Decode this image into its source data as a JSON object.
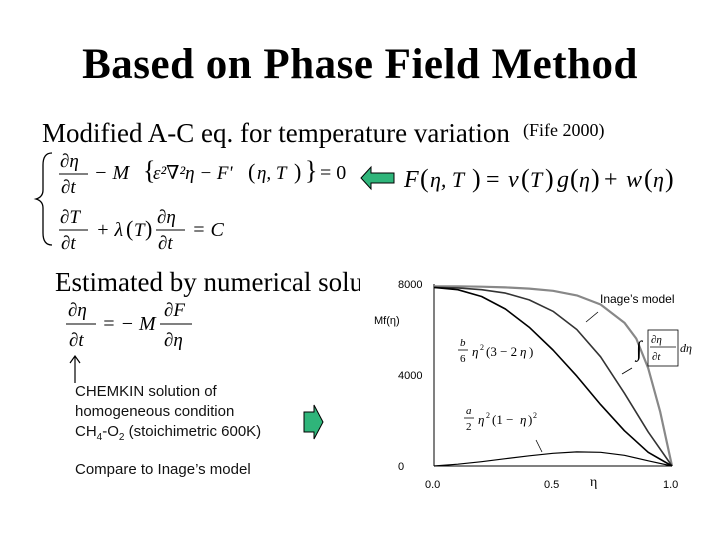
{
  "slide": {
    "title": "Based on Phase Field Method",
    "line1": "Modified A-C eq. for temperature variation",
    "citation": "(Fife 2000)",
    "line2": "Estimated by numerical soluti"
  },
  "equations": {
    "eq1": "∂η/∂t − M{ε²∇²η − F'(η,T)} = 0",
    "eq2": "∂T/∂t + λ(T) ∂η/∂t = C",
    "free_energy": "F(η,T) = v(T)g(η) + w(η)",
    "rate": "∂η/∂t = −M ∂F/∂η"
  },
  "notes": {
    "chemkin_line1": "CHEMKIN solution of",
    "chemkin_line2": "homogeneous condition",
    "chemkin_species_a": "CH",
    "chemkin_sub_a": "4",
    "chemkin_mid": "-O",
    "chemkin_sub_b": "2",
    "chemkin_tail": " (stoichimetric 600K)",
    "compare": "Compare to Inage’s model"
  },
  "chart_data": {
    "type": "line",
    "ylabel": "Mf(η)",
    "xlabel": "η",
    "x_ticks": [
      "0.0",
      "0.5",
      "1.0"
    ],
    "y_ticks": [
      "8000",
      "4000",
      "0"
    ],
    "xlim": [
      0,
      1
    ],
    "ylim": [
      0,
      8000
    ],
    "legend": "Inage’s model",
    "annotations": {
      "cubic": "(b/6) η² (3 − 2η)",
      "quartic": "(a/2) η² (1 − η)²",
      "integral": "∫ (∂η/∂t) dη"
    },
    "series": [
      {
        "name": "Inage’s model",
        "color": "#888888",
        "x": [
          0,
          0.1,
          0.2,
          0.3,
          0.4,
          0.5,
          0.6,
          0.7,
          0.8,
          0.85,
          0.9,
          0.95,
          1.0
        ],
        "y": [
          7900,
          7900,
          7880,
          7850,
          7800,
          7700,
          7500,
          7100,
          6300,
          5600,
          4300,
          2400,
          0
        ]
      },
      {
        "name": "",
        "color": "#333333",
        "x": [
          0,
          0.1,
          0.2,
          0.3,
          0.4,
          0.5,
          0.6,
          0.7,
          0.8,
          0.9,
          1.0
        ],
        "y": [
          7850,
          7830,
          7750,
          7600,
          7300,
          6800,
          6000,
          4800,
          3200,
          1500,
          0
        ]
      },
      {
        "name": "",
        "color": "#000000",
        "x": [
          0,
          0.1,
          0.2,
          0.3,
          0.4,
          0.5,
          0.6,
          0.7,
          0.8,
          0.9,
          1.0
        ],
        "y": [
          7850,
          7750,
          7450,
          6900,
          6100,
          5100,
          3950,
          2700,
          1550,
          600,
          0
        ]
      },
      {
        "name": "",
        "color": "#000000",
        "x": [
          0,
          0.1,
          0.2,
          0.3,
          0.4,
          0.5,
          0.6,
          0.7,
          0.8,
          0.9,
          1.0
        ],
        "y": [
          0,
          80,
          190,
          320,
          450,
          560,
          620,
          600,
          470,
          230,
          0
        ]
      }
    ]
  }
}
